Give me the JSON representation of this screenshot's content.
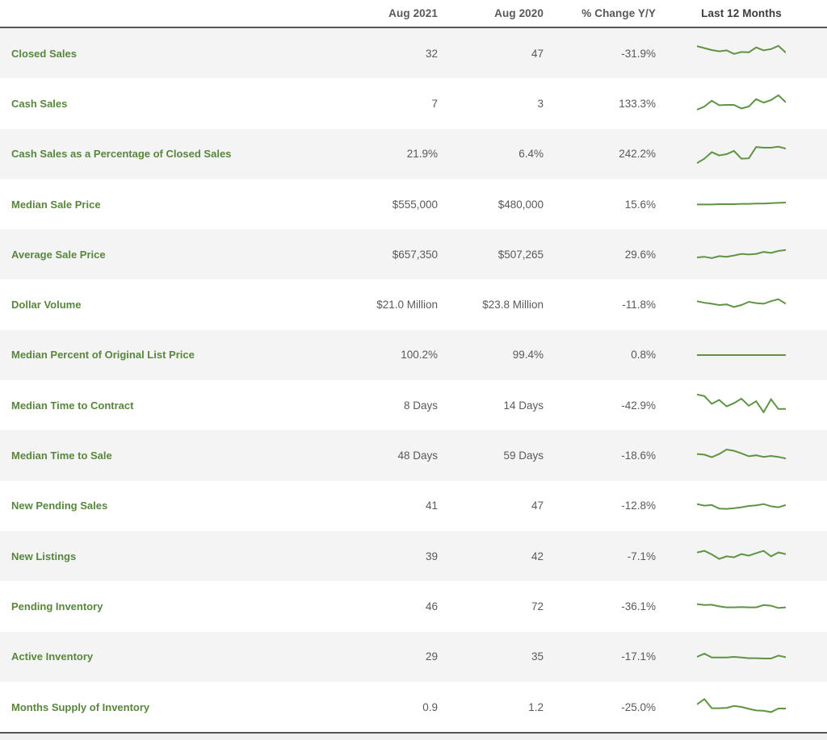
{
  "colors": {
    "accent_green": "#58863C",
    "sparkline_green": "#5E9444",
    "value_text": "#58595B",
    "header_text": "#3B3C3E",
    "alt_row_bg": "#F4F4F5",
    "border": "#54565A"
  },
  "chart_data": {
    "type": "table",
    "columns": [
      "",
      "Aug 2021",
      "Aug 2020",
      "% Change Y/Y",
      "Last 12 Months"
    ],
    "sparkline_style": "line",
    "sparkline_value_scale": "relative 0-10, unlabeled mini trend over last 12 months",
    "rows": [
      {
        "metric": "Closed Sales",
        "aug_2021": "32",
        "aug_2020": "47",
        "pct_change_yy": "-31.9%",
        "sparkline": [
          7.2,
          6.6,
          6.0,
          5.6,
          5.9,
          4.8,
          5.4,
          5.3,
          6.8,
          5.9,
          6.3,
          7.3,
          5.2
        ]
      },
      {
        "metric": "Cash Sales",
        "aug_2021": "7",
        "aug_2020": "3",
        "pct_change_yy": "133.3%",
        "sparkline": [
          3.0,
          4.0,
          5.8,
          4.4,
          4.5,
          4.5,
          3.4,
          4.0,
          6.3,
          5.2,
          6.0,
          7.5,
          5.3
        ]
      },
      {
        "metric": "Cash Sales as a Percentage of Closed Sales",
        "aug_2021": "21.9%",
        "aug_2020": "6.4%",
        "pct_change_yy": "242.2%",
        "sparkline": [
          2.2,
          3.6,
          5.6,
          4.6,
          5.0,
          6.0,
          3.6,
          3.7,
          7.2,
          7.0,
          7.0,
          7.3,
          6.7
        ]
      },
      {
        "metric": "Median Sale Price",
        "aug_2021": "$555,000",
        "aug_2020": "$480,000",
        "pct_change_yy": "15.6%",
        "sparkline": [
          4.9,
          4.9,
          4.9,
          5.0,
          5.0,
          5.0,
          5.1,
          5.1,
          5.2,
          5.2,
          5.3,
          5.4,
          5.5
        ]
      },
      {
        "metric": "Average Sale Price",
        "aug_2021": "$657,350",
        "aug_2020": "$507,265",
        "pct_change_yy": "29.6%",
        "sparkline": [
          4.0,
          4.2,
          3.8,
          4.4,
          4.2,
          4.6,
          5.1,
          4.9,
          5.1,
          5.7,
          5.4,
          6.0,
          6.3
        ]
      },
      {
        "metric": "Dollar Volume",
        "aug_2021": "$21.0 Million",
        "aug_2020": "$23.8 Million",
        "pct_change_yy": "-11.8%",
        "sparkline": [
          6.2,
          5.7,
          5.4,
          5.0,
          5.2,
          4.4,
          5.0,
          6.0,
          5.6,
          5.4,
          6.2,
          6.8,
          5.4
        ]
      },
      {
        "metric": "Median Percent of Original List Price",
        "aug_2021": "100.2%",
        "aug_2020": "99.4%",
        "pct_change_yy": "0.8%",
        "sparkline": [
          5.0,
          5.0,
          5.0,
          5.0,
          5.0,
          5.0,
          5.0,
          5.0,
          5.0,
          5.0,
          5.0,
          5.0,
          5.0
        ]
      },
      {
        "metric": "Median Time to Contract",
        "aug_2021": "8 Days",
        "aug_2020": "14 Days",
        "pct_change_yy": "-42.9%",
        "sparkline": [
          8.3,
          7.8,
          5.4,
          6.6,
          4.6,
          5.6,
          7.0,
          4.8,
          6.2,
          2.8,
          6.8,
          3.8,
          3.8
        ]
      },
      {
        "metric": "Median Time to Sale",
        "aug_2021": "48 Days",
        "aug_2020": "59 Days",
        "pct_change_yy": "-18.6%",
        "sparkline": [
          5.6,
          5.4,
          4.6,
          5.6,
          7.0,
          6.6,
          5.8,
          4.9,
          5.2,
          4.7,
          5.0,
          4.7,
          4.2
        ]
      },
      {
        "metric": "New Pending Sales",
        "aug_2021": "41",
        "aug_2020": "47",
        "pct_change_yy": "-12.8%",
        "sparkline": [
          5.6,
          5.1,
          5.3,
          4.2,
          4.1,
          4.3,
          4.6,
          5.0,
          5.2,
          5.6,
          4.9,
          4.6,
          5.3
        ]
      },
      {
        "metric": "New Listings",
        "aug_2021": "39",
        "aug_2020": "42",
        "pct_change_yy": "-7.1%",
        "sparkline": [
          6.1,
          6.6,
          5.5,
          4.1,
          4.9,
          4.6,
          5.6,
          5.1,
          5.9,
          6.6,
          4.9,
          6.1,
          5.6
        ]
      },
      {
        "metric": "Pending Inventory",
        "aug_2021": "46",
        "aug_2020": "72",
        "pct_change_yy": "-36.1%",
        "sparkline": [
          5.6,
          5.3,
          5.4,
          4.9,
          4.6,
          4.6,
          4.7,
          4.6,
          4.6,
          5.3,
          5.1,
          4.4,
          4.6
        ]
      },
      {
        "metric": "Active Inventory",
        "aug_2021": "29",
        "aug_2020": "35",
        "pct_change_yy": "-17.1%",
        "sparkline": [
          5.0,
          6.0,
          4.8,
          4.8,
          4.8,
          5.0,
          4.8,
          4.6,
          4.6,
          4.5,
          4.5,
          5.4,
          4.9
        ]
      },
      {
        "metric": "Months Supply of Inventory",
        "aug_2021": "0.9",
        "aug_2020": "1.2",
        "pct_change_yy": "-25.0%",
        "sparkline": [
          5.8,
          7.4,
          4.6,
          4.6,
          4.7,
          5.3,
          5.0,
          4.4,
          3.9,
          3.8,
          3.4,
          4.5,
          4.5
        ]
      }
    ]
  }
}
